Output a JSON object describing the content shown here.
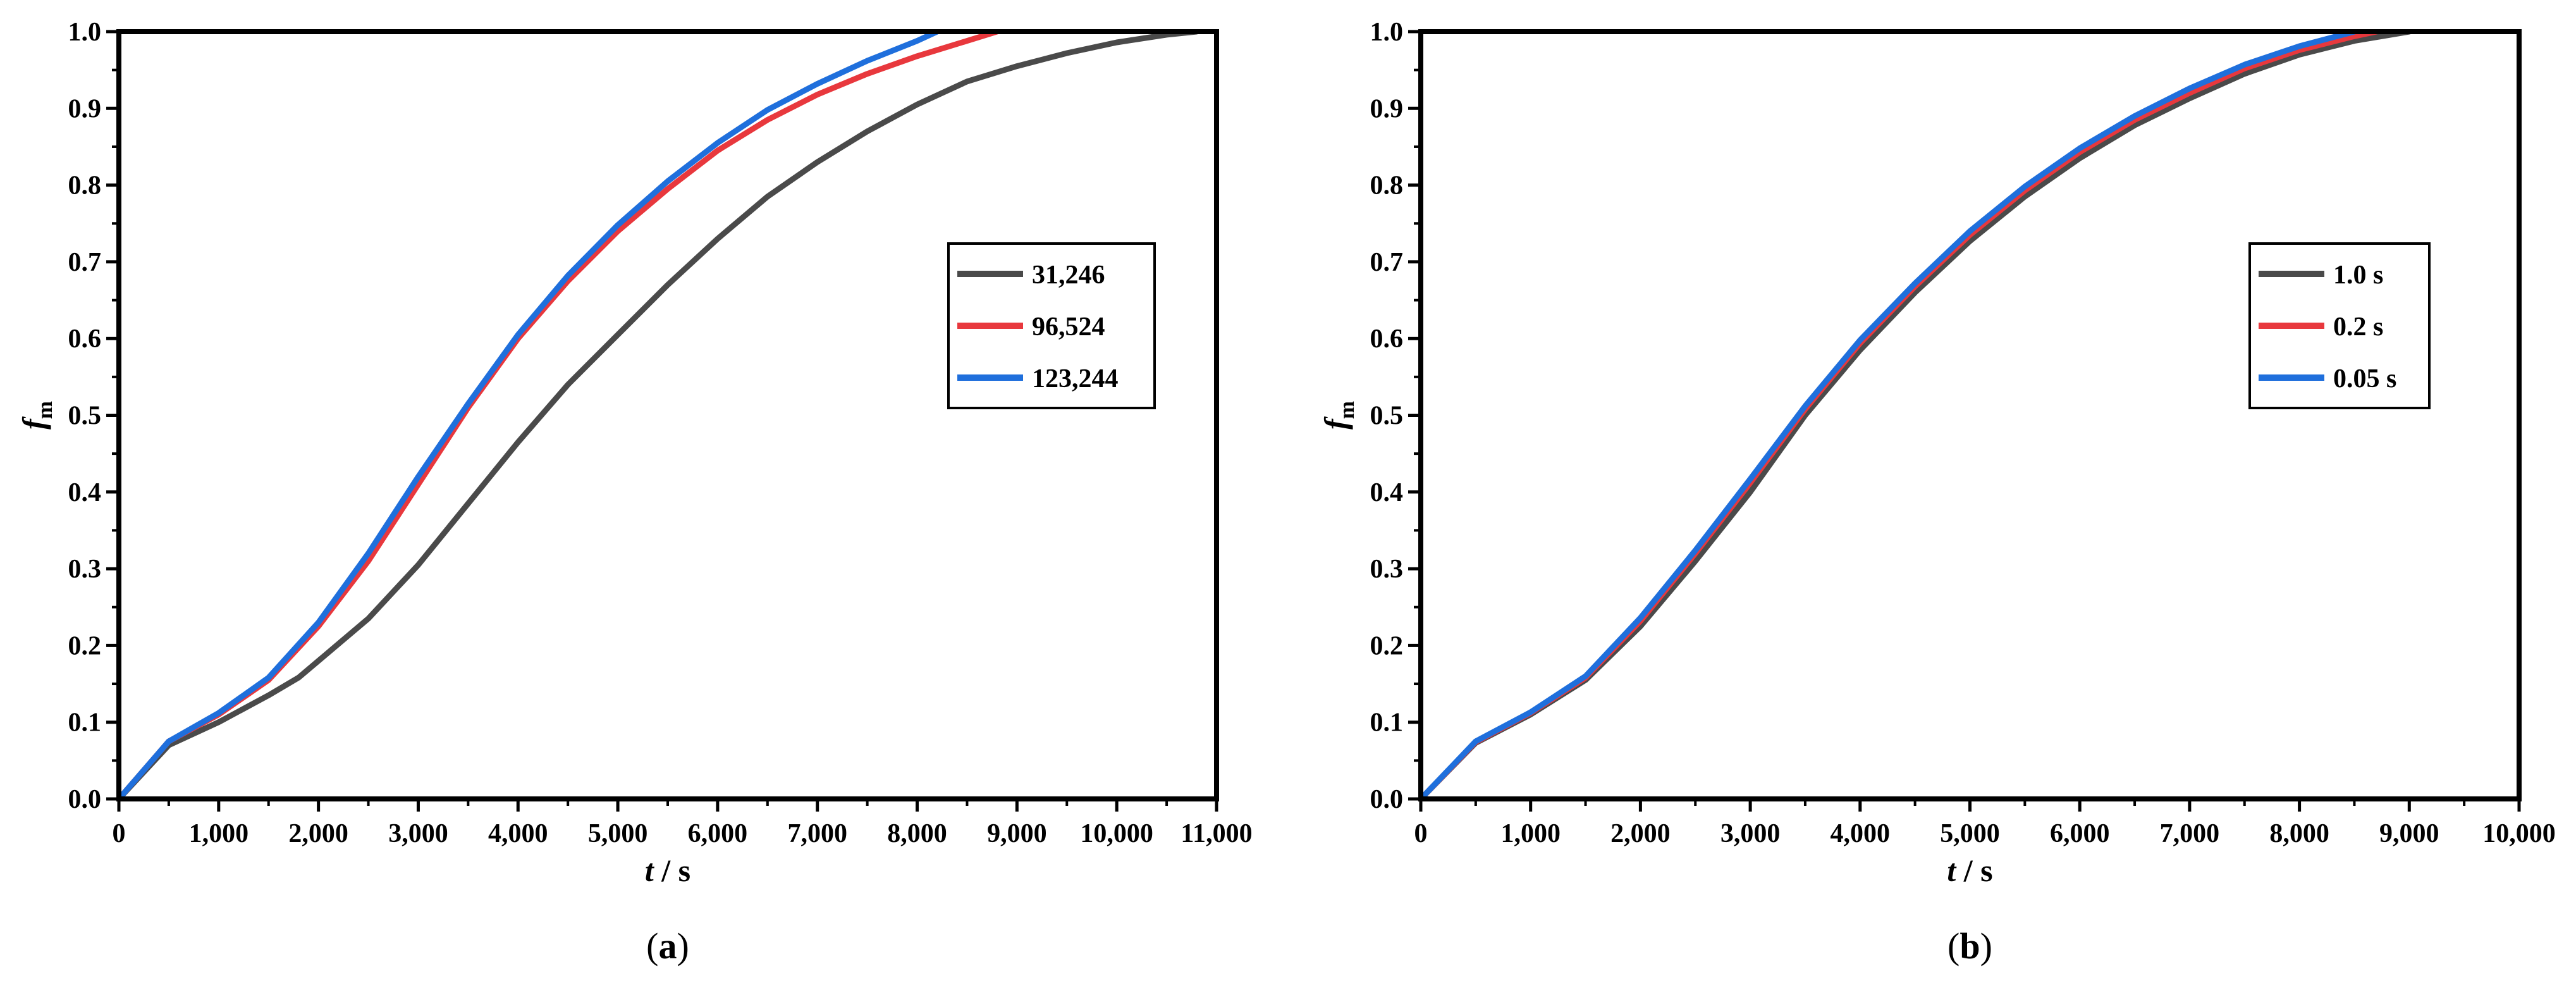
{
  "chart_data": [
    {
      "type": "line",
      "panel_label": {
        "open": "(",
        "letter": "a",
        "close": ")"
      },
      "xlabel": {
        "var": "t",
        "rest": " / s"
      },
      "ylabel": {
        "var": "f",
        "sub": "m"
      },
      "xlim": [
        0,
        11000
      ],
      "ylim": [
        0,
        1.0
      ],
      "x_ticks": [
        0,
        1000,
        2000,
        3000,
        4000,
        5000,
        6000,
        7000,
        8000,
        9000,
        10000,
        11000
      ],
      "x_tick_labels": [
        "0",
        "1,000",
        "2,000",
        "3,000",
        "4,000",
        "5,000",
        "6,000",
        "7,000",
        "8,000",
        "9,000",
        "10,000",
        "11,000"
      ],
      "y_ticks": [
        0,
        0.1,
        0.2,
        0.3,
        0.4,
        0.5,
        0.6,
        0.7,
        0.8,
        0.9,
        1.0
      ],
      "y_tick_labels": [
        "0.0",
        "0.1",
        "0.2",
        "0.3",
        "0.4",
        "0.5",
        "0.6",
        "0.7",
        "0.8",
        "0.9",
        "1.0"
      ],
      "grid": false,
      "legend_position": "right-middle",
      "series": [
        {
          "name": "31,246",
          "color": "#4a4a4a",
          "x": [
            0,
            500,
            1000,
            1500,
            1800,
            2000,
            2500,
            3000,
            3500,
            4000,
            4500,
            5000,
            5500,
            6000,
            6500,
            7000,
            7500,
            8000,
            8500,
            9000,
            9500,
            10000,
            10500,
            10800
          ],
          "y": [
            0,
            0.07,
            0.1,
            0.135,
            0.158,
            0.18,
            0.235,
            0.305,
            0.385,
            0.465,
            0.54,
            0.605,
            0.67,
            0.73,
            0.785,
            0.83,
            0.87,
            0.905,
            0.935,
            0.955,
            0.972,
            0.986,
            0.996,
            1.0
          ]
        },
        {
          "name": "96,524",
          "color": "#e8383d",
          "x": [
            0,
            500,
            1000,
            1500,
            2000,
            2500,
            3000,
            3500,
            4000,
            4500,
            5000,
            5500,
            6000,
            6500,
            7000,
            7500,
            8000,
            8500,
            8800
          ],
          "y": [
            0,
            0.075,
            0.11,
            0.155,
            0.225,
            0.31,
            0.41,
            0.51,
            0.6,
            0.675,
            0.74,
            0.795,
            0.845,
            0.885,
            0.918,
            0.945,
            0.968,
            0.988,
            1.0
          ]
        },
        {
          "name": "123,244",
          "color": "#1f6fdc",
          "x": [
            0,
            500,
            1000,
            1500,
            2000,
            2500,
            3000,
            3500,
            4000,
            4500,
            5000,
            5500,
            6000,
            6500,
            7000,
            7500,
            8000,
            8200
          ],
          "y": [
            0,
            0.075,
            0.112,
            0.158,
            0.23,
            0.32,
            0.42,
            0.515,
            0.605,
            0.682,
            0.748,
            0.805,
            0.855,
            0.898,
            0.932,
            0.962,
            0.988,
            1.0
          ]
        }
      ]
    },
    {
      "type": "line",
      "panel_label": {
        "open": "(",
        "letter": "b",
        "close": ")"
      },
      "xlabel": {
        "var": "t",
        "rest": " / s"
      },
      "ylabel": {
        "var": "f",
        "sub": "m"
      },
      "xlim": [
        0,
        10000
      ],
      "ylim": [
        0,
        1.0
      ],
      "x_ticks": [
        0,
        1000,
        2000,
        3000,
        4000,
        5000,
        6000,
        7000,
        8000,
        9000,
        10000
      ],
      "x_tick_labels": [
        "0",
        "1,000",
        "2,000",
        "3,000",
        "4,000",
        "5,000",
        "6,000",
        "7,000",
        "8,000",
        "9,000",
        "10,000"
      ],
      "y_ticks": [
        0,
        0.1,
        0.2,
        0.3,
        0.4,
        0.5,
        0.6,
        0.7,
        0.8,
        0.9,
        1.0
      ],
      "y_tick_labels": [
        "0.0",
        "0.1",
        "0.2",
        "0.3",
        "0.4",
        "0.5",
        "0.6",
        "0.7",
        "0.8",
        "0.9",
        "1.0"
      ],
      "grid": false,
      "legend_position": "right-middle",
      "series": [
        {
          "name": "1.0 s",
          "color": "#4a4a4a",
          "x": [
            0,
            500,
            1000,
            1500,
            2000,
            2500,
            3000,
            3500,
            4000,
            4500,
            5000,
            5500,
            6000,
            6500,
            7000,
            7500,
            8000,
            8500,
            9000
          ],
          "y": [
            0,
            0.073,
            0.11,
            0.155,
            0.225,
            0.31,
            0.4,
            0.5,
            0.585,
            0.66,
            0.727,
            0.785,
            0.835,
            0.878,
            0.913,
            0.945,
            0.97,
            0.988,
            1.0
          ]
        },
        {
          "name": "0.2 s",
          "color": "#e8383d",
          "x": [
            0,
            500,
            1000,
            1500,
            2000,
            2500,
            3000,
            3500,
            4000,
            4500,
            5000,
            5500,
            6000,
            6500,
            7000,
            7500,
            8000,
            8500,
            8700
          ],
          "y": [
            0,
            0.074,
            0.112,
            0.158,
            0.232,
            0.32,
            0.412,
            0.508,
            0.594,
            0.668,
            0.735,
            0.793,
            0.843,
            0.885,
            0.92,
            0.952,
            0.976,
            0.994,
            1.0
          ]
        },
        {
          "name": "0.05 s",
          "color": "#1f6fdc",
          "x": [
            0,
            500,
            1000,
            1500,
            2000,
            2500,
            3000,
            3500,
            4000,
            4500,
            5000,
            5500,
            6000,
            6500,
            7000,
            7500,
            8000,
            8500
          ],
          "y": [
            0,
            0.075,
            0.113,
            0.16,
            0.236,
            0.324,
            0.417,
            0.512,
            0.598,
            0.672,
            0.74,
            0.798,
            0.848,
            0.89,
            0.926,
            0.957,
            0.981,
            1.0
          ]
        }
      ]
    }
  ]
}
